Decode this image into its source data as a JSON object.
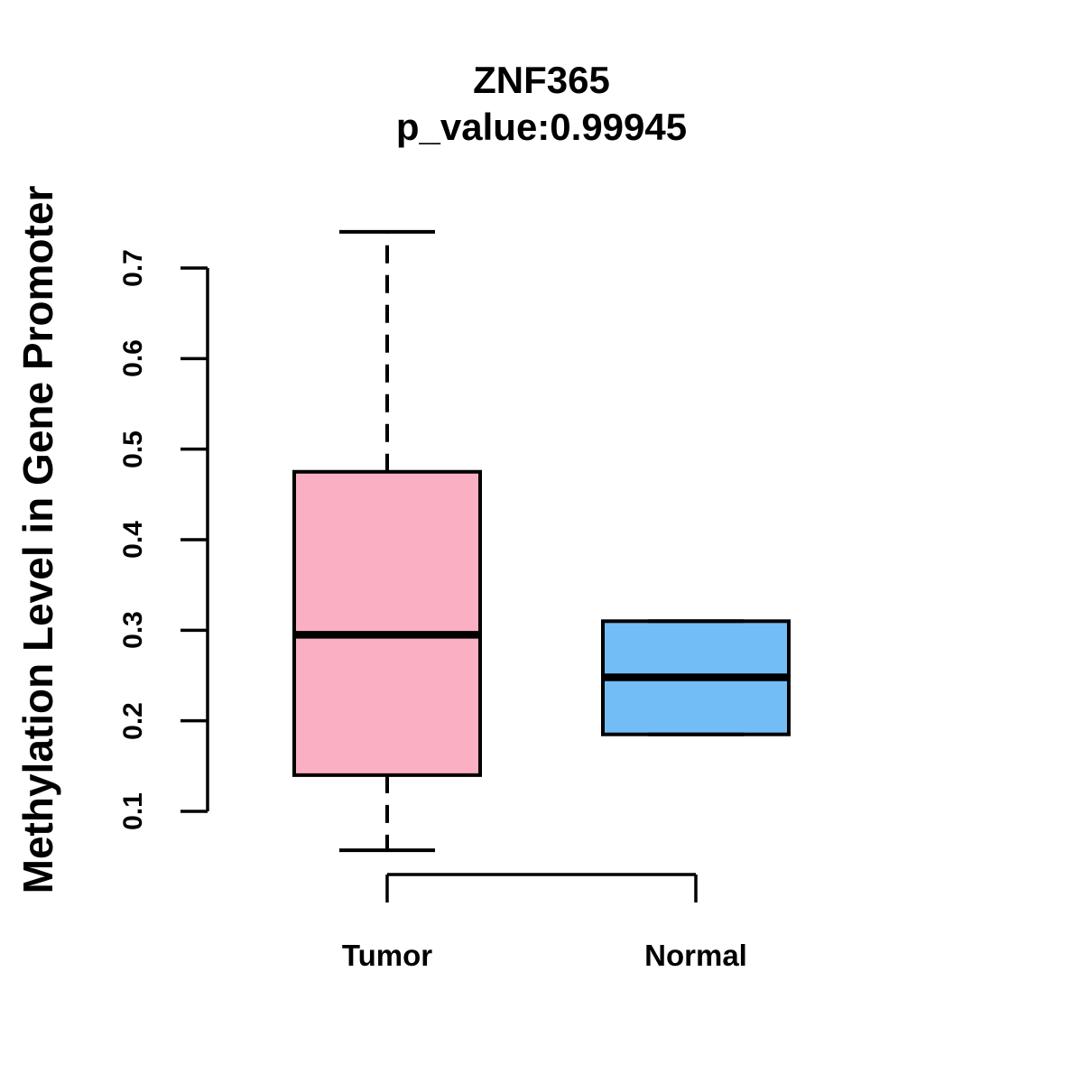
{
  "chart_data": {
    "type": "boxplot",
    "title": "ZNF365",
    "subtitle": "p_value:0.99945",
    "ylabel": "Methylation Level in Gene Promoter",
    "xlabel": "",
    "categories": [
      "Tumor",
      "Normal"
    ],
    "yticks": [
      0.1,
      0.2,
      0.3,
      0.4,
      0.5,
      0.6,
      0.7
    ],
    "axis_range": [
      0.1,
      0.7
    ],
    "grid": false,
    "legend": "none",
    "background_color": "#FFFFFF",
    "stroke_color": "#000000",
    "series": [
      {
        "name": "Tumor",
        "color": "#FBAFC3",
        "lower_whisker": 0.057,
        "q1": 0.14,
        "median": 0.295,
        "q3": 0.475,
        "upper_whisker": 0.74,
        "whisker_style": "dashed"
      },
      {
        "name": "Normal",
        "color": "#73BDF6",
        "lower_whisker": 0.185,
        "q1": 0.185,
        "median": 0.248,
        "q3": 0.31,
        "upper_whisker": 0.31,
        "whisker_style": "dashed"
      }
    ]
  }
}
